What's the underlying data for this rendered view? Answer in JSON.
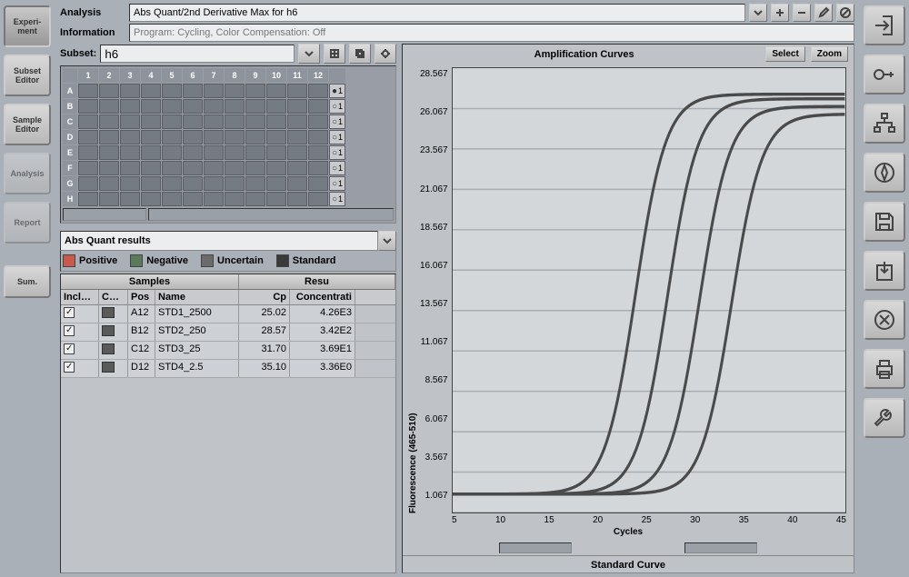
{
  "leftTabs": {
    "experiment": "Experi-\nment",
    "subsetEditor": "Subset\nEditor",
    "sampleEditor": "Sample\nEditor",
    "analysis": "Analysis",
    "report": "Report",
    "sum": "Sum."
  },
  "analysis": {
    "label": "Analysis",
    "value": "Abs Quant/2nd Derivative Max for h6"
  },
  "information": {
    "label": "Information",
    "value": "Program: Cycling, Color Compensation: Off"
  },
  "subset": {
    "label": "Subset:",
    "value": "h6"
  },
  "plate": {
    "cols": [
      "1",
      "2",
      "3",
      "4",
      "5",
      "6",
      "7",
      "8",
      "9",
      "10",
      "11",
      "12"
    ],
    "rows": [
      "A",
      "B",
      "C",
      "D",
      "E",
      "F",
      "G",
      "H"
    ],
    "radioCol": [
      "1",
      "1",
      "1",
      "1",
      "1",
      "1",
      "1",
      "1"
    ]
  },
  "results": {
    "dropdown": "Abs Quant results",
    "legend": [
      {
        "label": "Positive",
        "color": "#c9594a"
      },
      {
        "label": "Negative",
        "color": "#5b7a5b"
      },
      {
        "label": "Uncertain",
        "color": "#6b6b6b"
      },
      {
        "label": "Standard",
        "color": "#3a3a3a"
      }
    ],
    "groupHeaders": {
      "samples": "Samples",
      "results": "Resu"
    },
    "columns": {
      "include": "Include",
      "color": "Color",
      "pos": "Pos",
      "name": "Name",
      "cp": "Cp",
      "conc": "Concentrati"
    },
    "rows": [
      {
        "pos": "A12",
        "name": "STD1_2500",
        "cp": "25.02",
        "conc": "4.26E3",
        "color": "#5a5a5a"
      },
      {
        "pos": "B12",
        "name": "STD2_250",
        "cp": "28.57",
        "conc": "3.42E2",
        "color": "#5a5a5a"
      },
      {
        "pos": "C12",
        "name": "STD3_25",
        "cp": "31.70",
        "conc": "3.69E1",
        "color": "#5a5a5a"
      },
      {
        "pos": "D12",
        "name": "STD4_2.5",
        "cp": "35.10",
        "conc": "3.36E0",
        "color": "#5a5a5a"
      }
    ]
  },
  "chart": {
    "title": "Amplification Curves",
    "selectBtn": "Select",
    "zoomBtn": "Zoom",
    "yLabel": "Fluorescence (465-510)",
    "xLabel": "Cycles",
    "yTicks": [
      "28.567",
      "26.067",
      "23.567",
      "21.067",
      "18.567",
      "16.067",
      "13.567",
      "11.067",
      "8.567",
      "6.067",
      "3.567",
      "1.067"
    ],
    "xTicks": [
      "5",
      "10",
      "15",
      "20",
      "25",
      "30",
      "35",
      "40",
      "45"
    ],
    "xlim": [
      2,
      45
    ],
    "ylim": [
      0,
      29
    ],
    "curves": [
      {
        "color": "#4a4a4a",
        "shift": 0,
        "top": 27.3
      },
      {
        "color": "#4a4a4a",
        "shift": 3.5,
        "top": 27.0
      },
      {
        "color": "#4a4a4a",
        "shift": 7,
        "top": 26.5
      },
      {
        "color": "#4a4a4a",
        "shift": 10.5,
        "top": 26.0
      }
    ],
    "grid_color": "#a8adb2",
    "background": "#d4d7da"
  },
  "stdCurve": {
    "title": "Standard Curve"
  }
}
